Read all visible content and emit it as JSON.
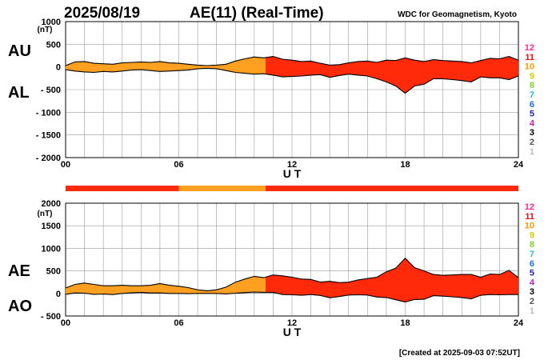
{
  "header": {
    "date": "2025/08/19",
    "title": "AE(11) (Real-Time)",
    "source": "WDC for Geomagnetism, Kyoto",
    "footer": "[Created at 2025-09-03 07:52UT]"
  },
  "legend_numbers": [
    "12",
    "11",
    "10",
    "9",
    "8",
    "7",
    "6",
    "5",
    "4",
    "3",
    "2",
    "1"
  ],
  "legend_colors": [
    "#ff2a8a",
    "#ee1111",
    "#ff9900",
    "#cccc00",
    "#7fd13a",
    "#21c3c9",
    "#1d6fe0",
    "#2222bb",
    "#c21ec9",
    "#000000",
    "#555555",
    "#bbbbbb"
  ],
  "colors": {
    "red": "#ff2a0a",
    "orange": "#ffa020",
    "line": "#000000"
  },
  "station_bar": [
    {
      "from": 0,
      "to": 6,
      "color": "#ff2a0a"
    },
    {
      "from": 6,
      "to": 10.6,
      "color": "#ffa020"
    },
    {
      "from": 10.6,
      "to": 24,
      "color": "#ff2a0a"
    }
  ],
  "chart_data": [
    {
      "type": "area",
      "panel": "AU / AL",
      "side_labels": [
        "AU",
        "AL"
      ],
      "xlabel": "U T",
      "ylabel": "(nT)",
      "xticks": [
        "00",
        "06",
        "12",
        "18",
        "24"
      ],
      "xlim": [
        0,
        24
      ],
      "ylim": [
        -2000,
        1000
      ],
      "yticks": [
        "1000",
        "500",
        "0",
        "- 500",
        "- 1000",
        "- 1500",
        "- 2000"
      ],
      "ytick_values": [
        1000,
        500,
        0,
        -500,
        -1000,
        -1500,
        -2000
      ],
      "grid": true,
      "x": [
        0,
        0.5,
        1,
        1.5,
        2,
        2.5,
        3,
        3.5,
        4,
        4.5,
        5,
        5.5,
        6,
        6.5,
        7,
        7.5,
        8,
        8.5,
        9,
        9.5,
        10,
        10.5,
        11,
        11.5,
        12,
        12.5,
        13,
        13.5,
        14,
        14.5,
        15,
        15.5,
        16,
        16.5,
        17,
        17.5,
        18,
        18.5,
        19,
        19.5,
        20,
        20.5,
        21,
        21.5,
        22,
        22.5,
        23,
        23.5,
        24
      ],
      "series": [
        {
          "name": "AU",
          "values": [
            30,
            110,
            120,
            80,
            70,
            60,
            90,
            100,
            110,
            100,
            120,
            90,
            80,
            60,
            40,
            30,
            40,
            60,
            130,
            180,
            220,
            200,
            230,
            170,
            150,
            120,
            130,
            80,
            40,
            50,
            90,
            120,
            130,
            100,
            150,
            140,
            200,
            150,
            120,
            160,
            140,
            130,
            120,
            90,
            140,
            190,
            180,
            230,
            150
          ]
        },
        {
          "name": "AL",
          "values": [
            -60,
            -90,
            -110,
            -120,
            -100,
            -110,
            -90,
            -70,
            -60,
            -80,
            -100,
            -90,
            -80,
            -70,
            -40,
            -30,
            -40,
            -80,
            -120,
            -140,
            -160,
            -150,
            -180,
            -220,
            -210,
            -200,
            -180,
            -170,
            -230,
            -190,
            -160,
            -180,
            -200,
            -260,
            -330,
            -420,
            -580,
            -420,
            -380,
            -260,
            -260,
            -280,
            -300,
            -330,
            -220,
            -240,
            -240,
            -280,
            -200
          ]
        }
      ],
      "fill_segments": [
        {
          "from": 0,
          "to": 10.6,
          "color": "#ffa020"
        },
        {
          "from": 10.6,
          "to": 24,
          "color": "#ff2a0a"
        }
      ]
    },
    {
      "type": "area",
      "panel": "AE / AO",
      "side_labels": [
        "AE",
        "AO"
      ],
      "xlabel": "U T",
      "ylabel": "(nT)",
      "xticks": [
        "00",
        "06",
        "12",
        "18",
        "24"
      ],
      "xlim": [
        0,
        24
      ],
      "ylim": [
        -500,
        2000
      ],
      "yticks": [
        "2000",
        "1500",
        "1000",
        "500",
        "0",
        "- 500"
      ],
      "ytick_values": [
        2000,
        1500,
        1000,
        500,
        0,
        -500
      ],
      "grid": true,
      "x": [
        0,
        0.5,
        1,
        1.5,
        2,
        2.5,
        3,
        3.5,
        4,
        4.5,
        5,
        5.5,
        6,
        6.5,
        7,
        7.5,
        8,
        8.5,
        9,
        9.5,
        10,
        10.5,
        11,
        11.5,
        12,
        12.5,
        13,
        13.5,
        14,
        14.5,
        15,
        15.5,
        16,
        16.5,
        17,
        17.5,
        18,
        18.5,
        19,
        19.5,
        20,
        20.5,
        21,
        21.5,
        22,
        22.5,
        23,
        23.5,
        24
      ],
      "series": [
        {
          "name": "AE",
          "values": [
            120,
            200,
            230,
            200,
            170,
            170,
            180,
            170,
            170,
            180,
            220,
            180,
            160,
            130,
            80,
            60,
            80,
            140,
            250,
            320,
            380,
            350,
            410,
            390,
            360,
            320,
            310,
            250,
            270,
            240,
            250,
            300,
            330,
            360,
            480,
            560,
            780,
            570,
            500,
            420,
            400,
            410,
            420,
            420,
            360,
            430,
            420,
            510,
            350
          ]
        },
        {
          "name": "AO",
          "values": [
            -20,
            10,
            5,
            -20,
            -15,
            -25,
            0,
            15,
            25,
            10,
            10,
            0,
            0,
            -5,
            0,
            0,
            0,
            -10,
            5,
            20,
            30,
            25,
            25,
            -25,
            -30,
            -40,
            -25,
            -45,
            -95,
            -70,
            -35,
            -30,
            -35,
            -80,
            -90,
            -140,
            -190,
            -135,
            -130,
            -50,
            -60,
            -75,
            -90,
            -120,
            -40,
            -25,
            -30,
            -25,
            -25
          ]
        }
      ],
      "fill_segments": [
        {
          "from": 0,
          "to": 10.6,
          "color": "#ffa020"
        },
        {
          "from": 10.6,
          "to": 24,
          "color": "#ff2a0a"
        }
      ]
    }
  ]
}
